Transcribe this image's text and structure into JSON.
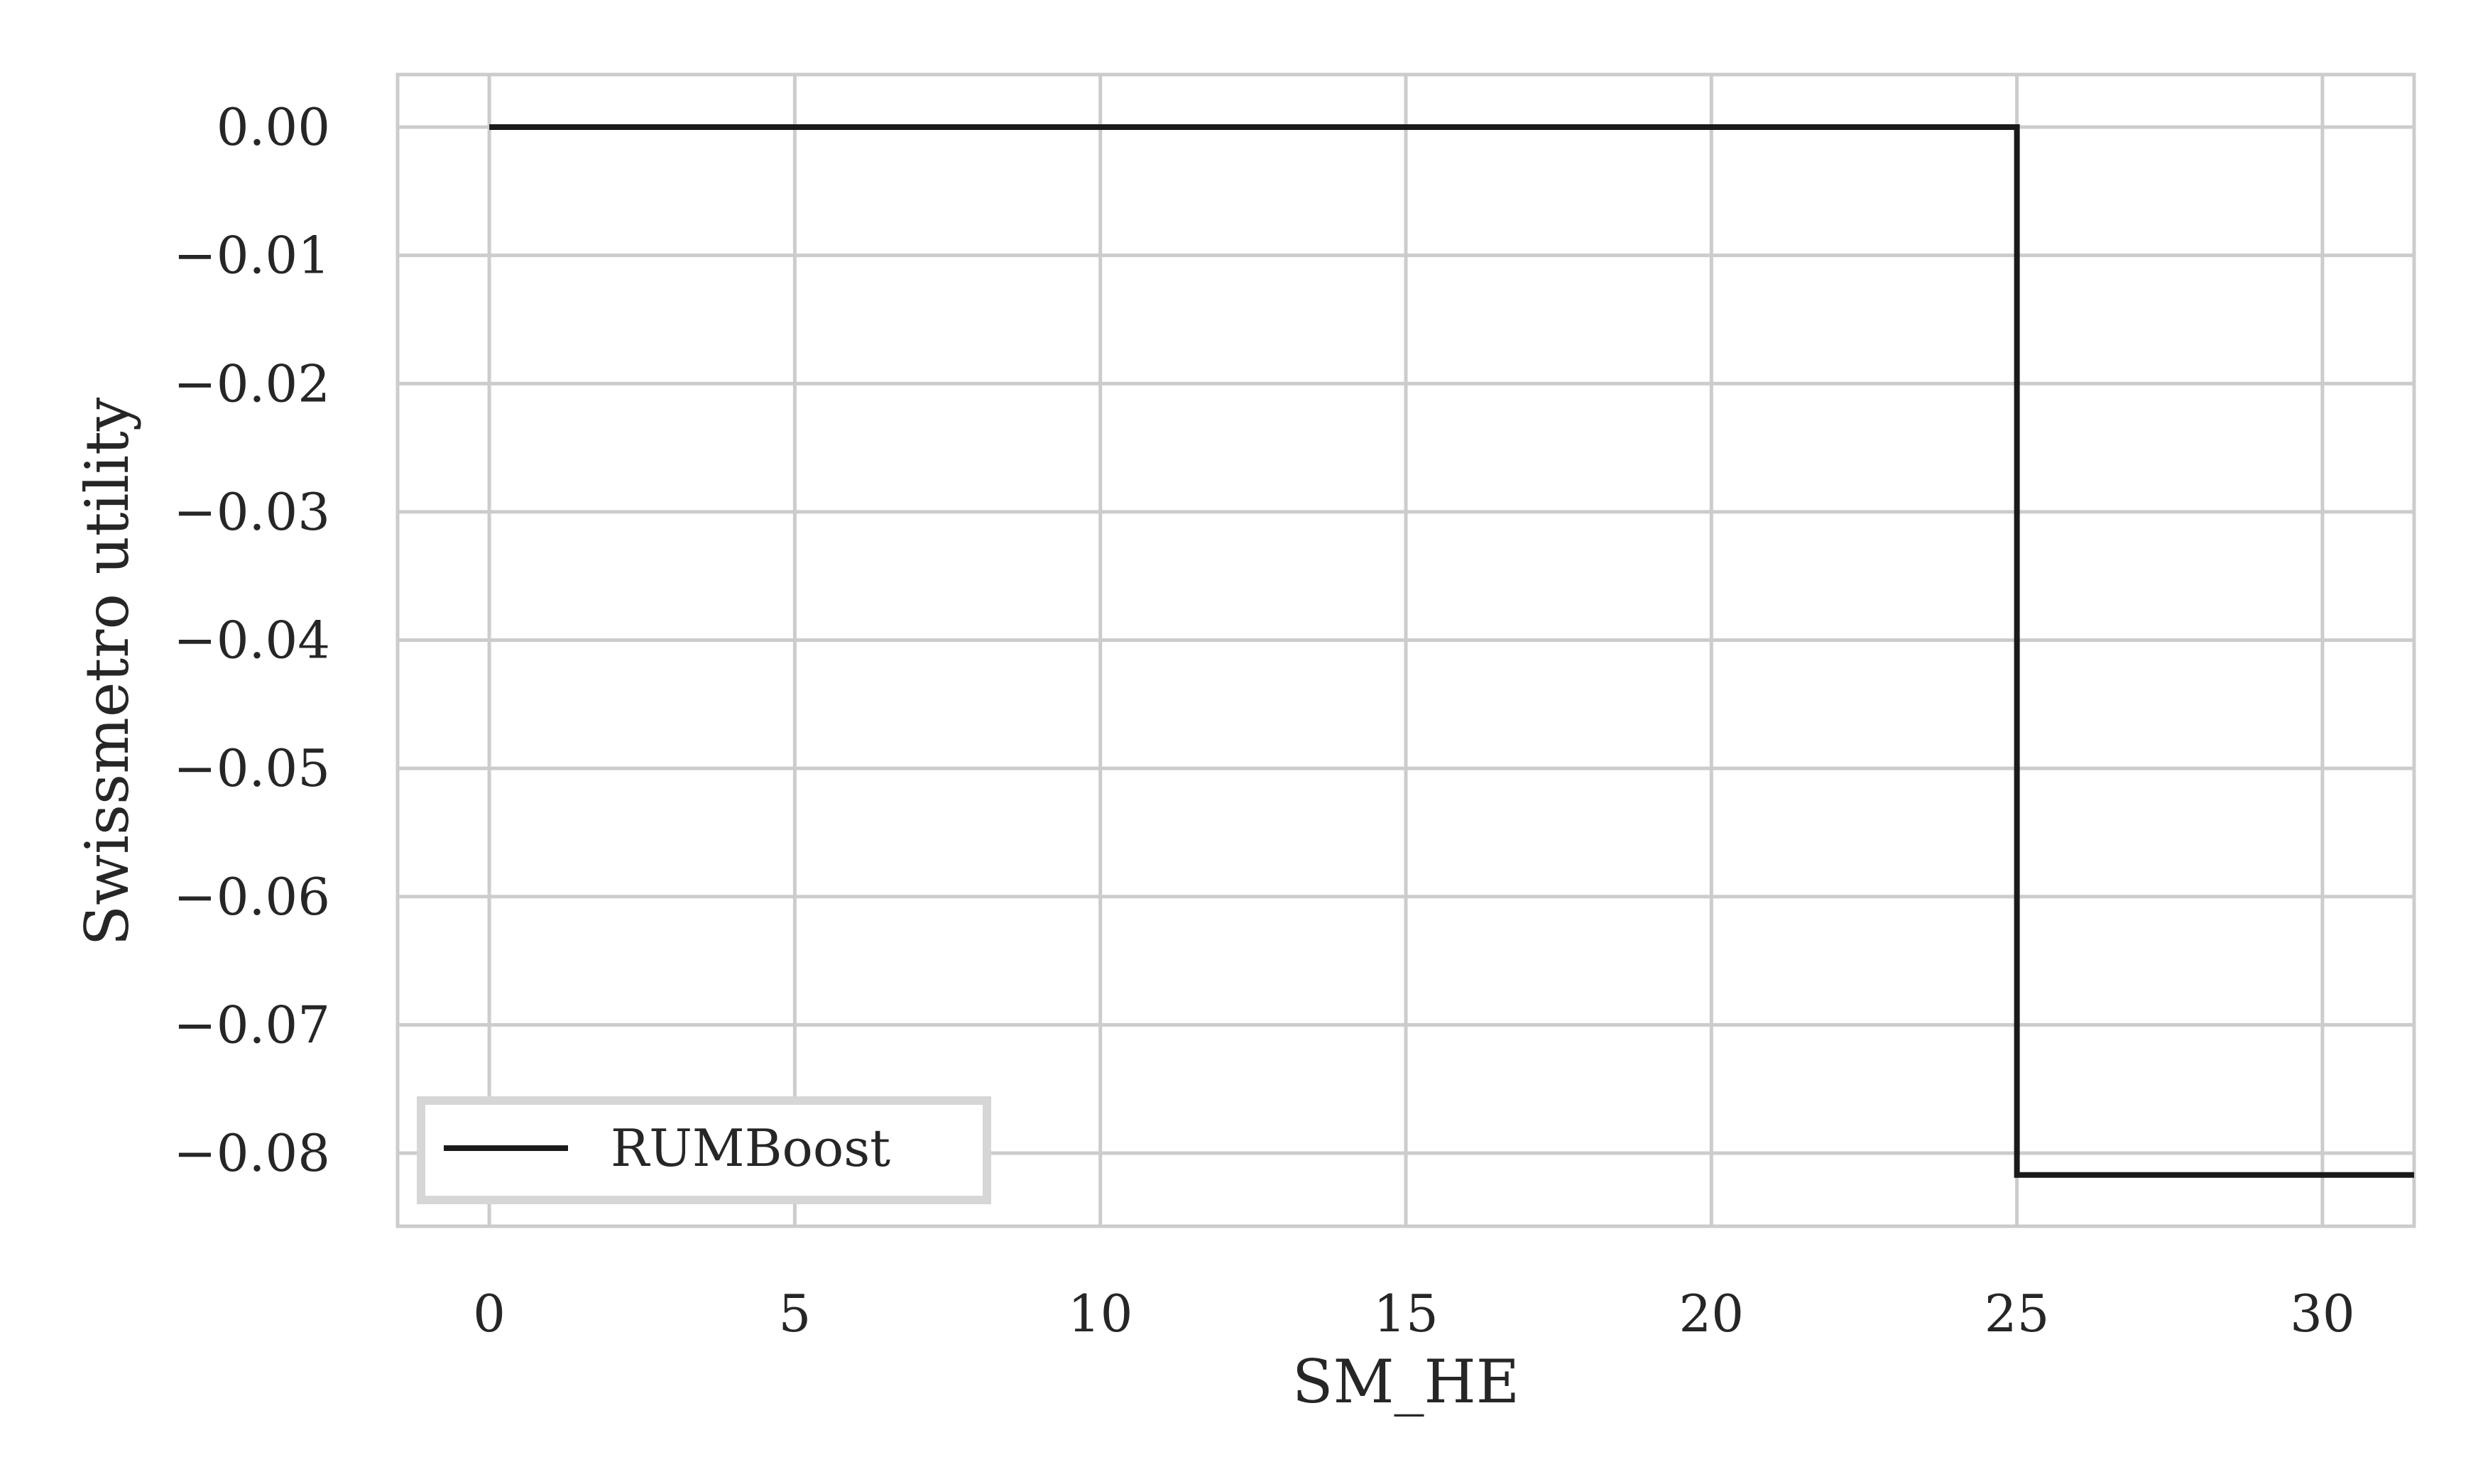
{
  "chart_data": {
    "type": "line",
    "step": true,
    "xlabel": "SM_HE",
    "ylabel": "Swissmetro utility",
    "xlim": [
      -1.5,
      31.5
    ],
    "ylim": [
      -0.0857,
      0.0041
    ],
    "xticks": [
      0,
      5,
      10,
      15,
      20,
      25,
      30
    ],
    "xtick_labels": [
      "0",
      "5",
      "10",
      "15",
      "20",
      "25",
      "30"
    ],
    "yticks": [
      0.0,
      -0.01,
      -0.02,
      -0.03,
      -0.04,
      -0.05,
      -0.06,
      -0.07,
      -0.08
    ],
    "ytick_labels": [
      "0.00",
      "−0.01",
      "−0.02",
      "−0.03",
      "−0.04",
      "−0.05",
      "−0.06",
      "−0.07",
      "−0.08"
    ],
    "grid": true,
    "legend_position": "lower-left",
    "series": [
      {
        "name": "RUMBoost",
        "color": "#1a1a1a",
        "x": [
          0,
          25,
          25,
          31.5
        ],
        "y": [
          0.0,
          0.0,
          -0.0817,
          -0.0817
        ]
      }
    ]
  }
}
